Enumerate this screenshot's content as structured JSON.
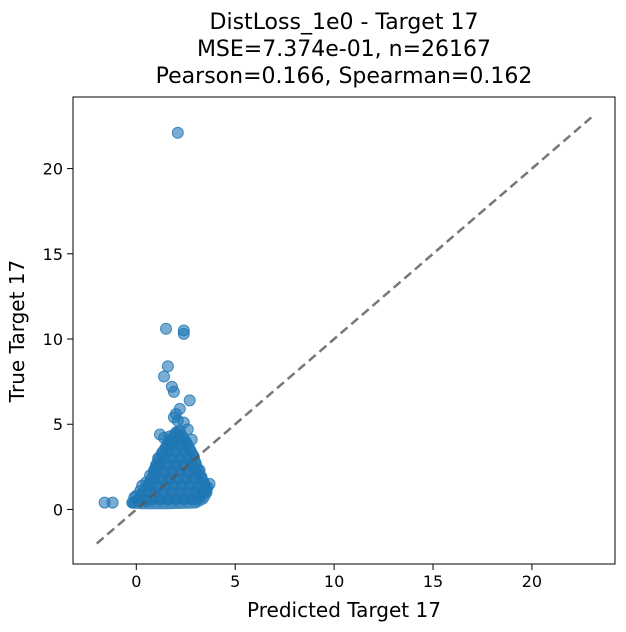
{
  "chart_data": {
    "type": "scatter",
    "title_lines": [
      "DistLoss_1e0 - Target 17",
      "MSE=7.374e-01, n=26167",
      "Pearson=0.166, Spearman=0.162"
    ],
    "xlabel": "Predicted Target 17",
    "ylabel": "True Target 17",
    "xlim": [
      -3.2,
      24.2
    ],
    "ylim": [
      -3.2,
      24.2
    ],
    "x_ticks": [
      0,
      5,
      10,
      15,
      20
    ],
    "y_ticks": [
      0,
      5,
      10,
      15,
      20
    ],
    "x_tick_labels": [
      "0",
      "5",
      "10",
      "15",
      "20"
    ],
    "y_tick_labels": [
      "0",
      "5",
      "10",
      "15",
      "20"
    ],
    "grid": false,
    "point_color": "#1f77b4",
    "point_alpha": 0.6,
    "reference_line": {
      "from": [
        -2,
        -2
      ],
      "to": [
        23,
        23
      ],
      "style": "dashed",
      "color": "#555555"
    },
    "points": [
      [
        2.1,
        22.1
      ],
      [
        1.5,
        10.6
      ],
      [
        2.4,
        10.5
      ],
      [
        2.4,
        10.3
      ],
      [
        1.6,
        8.4
      ],
      [
        1.4,
        7.8
      ],
      [
        1.8,
        7.2
      ],
      [
        1.9,
        6.9
      ],
      [
        2.7,
        6.4
      ],
      [
        2.2,
        5.9
      ],
      [
        2.0,
        5.6
      ],
      [
        1.9,
        5.4
      ],
      [
        2.1,
        5.2
      ],
      [
        2.4,
        5.1
      ],
      [
        2.6,
        4.7
      ],
      [
        1.2,
        4.4
      ],
      [
        2.2,
        4.6
      ],
      [
        1.4,
        4.2
      ],
      [
        2.8,
        4.1
      ],
      [
        1.7,
        4.3
      ],
      [
        -1.6,
        0.4
      ],
      [
        -1.2,
        0.4
      ],
      [
        -0.1,
        0.7
      ],
      [
        -0.2,
        0.4
      ],
      [
        0.0,
        0.8
      ],
      [
        3.7,
        1.5
      ],
      [
        3.5,
        1.2
      ],
      [
        3.3,
        0.9
      ],
      [
        3.1,
        0.6
      ],
      [
        0.2,
        1.1
      ],
      [
        0.3,
        1.4
      ],
      [
        0.5,
        1.6
      ],
      [
        0.7,
        2.0
      ],
      [
        0.9,
        2.3
      ],
      [
        1.0,
        2.6
      ],
      [
        1.1,
        3.0
      ],
      [
        1.3,
        3.3
      ],
      [
        1.5,
        3.6
      ],
      [
        1.6,
        3.9
      ],
      [
        1.8,
        4.0
      ],
      [
        2.0,
        4.4
      ],
      [
        2.3,
        4.2
      ],
      [
        2.5,
        3.9
      ],
      [
        2.7,
        3.5
      ],
      [
        2.9,
        3.1
      ],
      [
        3.0,
        2.7
      ],
      [
        3.2,
        2.3
      ],
      [
        3.3,
        1.9
      ],
      [
        3.4,
        1.6
      ],
      [
        0.4,
        0.6
      ],
      [
        0.8,
        0.6
      ],
      [
        1.2,
        0.6
      ],
      [
        1.6,
        0.6
      ],
      [
        2.0,
        0.6
      ],
      [
        2.4,
        0.6
      ],
      [
        2.8,
        0.6
      ],
      [
        3.2,
        0.7
      ],
      [
        0.6,
        1.0
      ],
      [
        1.0,
        1.0
      ],
      [
        1.4,
        1.0
      ],
      [
        1.8,
        1.0
      ],
      [
        2.2,
        1.0
      ],
      [
        2.6,
        1.0
      ],
      [
        3.0,
        1.0
      ],
      [
        0.7,
        1.4
      ],
      [
        1.1,
        1.4
      ],
      [
        1.5,
        1.4
      ],
      [
        1.9,
        1.4
      ],
      [
        2.3,
        1.4
      ],
      [
        2.7,
        1.4
      ],
      [
        3.1,
        1.4
      ],
      [
        0.9,
        1.8
      ],
      [
        1.3,
        1.8
      ],
      [
        1.7,
        1.8
      ],
      [
        2.1,
        1.8
      ],
      [
        2.5,
        1.8
      ],
      [
        2.9,
        1.8
      ],
      [
        1.0,
        2.2
      ],
      [
        1.4,
        2.2
      ],
      [
        1.8,
        2.2
      ],
      [
        2.2,
        2.2
      ],
      [
        2.6,
        2.2
      ],
      [
        3.0,
        2.2
      ],
      [
        1.2,
        2.6
      ],
      [
        1.6,
        2.6
      ],
      [
        2.0,
        2.6
      ],
      [
        2.4,
        2.6
      ],
      [
        2.8,
        2.6
      ],
      [
        1.4,
        3.0
      ],
      [
        1.8,
        3.0
      ],
      [
        2.2,
        3.0
      ],
      [
        2.6,
        3.0
      ],
      [
        1.6,
        3.4
      ],
      [
        2.0,
        3.4
      ],
      [
        2.4,
        3.4
      ],
      [
        1.8,
        3.8
      ],
      [
        2.2,
        3.8
      ],
      [
        2.0,
        4.1
      ],
      [
        0.1,
        0.5
      ],
      [
        0.5,
        0.5
      ],
      [
        3.5,
        1.0
      ],
      [
        3.6,
        1.3
      ]
    ],
    "dense_region": [
      [
        -0.2,
        0.35
      ],
      [
        0.1,
        0.6
      ],
      [
        0.5,
        1.3
      ],
      [
        0.8,
        2.0
      ],
      [
        1.0,
        2.7
      ],
      [
        1.3,
        3.4
      ],
      [
        1.7,
        4.1
      ],
      [
        2.0,
        4.6
      ],
      [
        2.3,
        4.4
      ],
      [
        2.6,
        3.9
      ],
      [
        2.9,
        3.2
      ],
      [
        3.1,
        2.5
      ],
      [
        3.3,
        1.9
      ],
      [
        3.5,
        1.4
      ],
      [
        3.6,
        1.0
      ],
      [
        3.4,
        0.6
      ],
      [
        3.0,
        0.35
      ],
      [
        1.5,
        0.3
      ],
      [
        0.3,
        0.3
      ]
    ]
  }
}
